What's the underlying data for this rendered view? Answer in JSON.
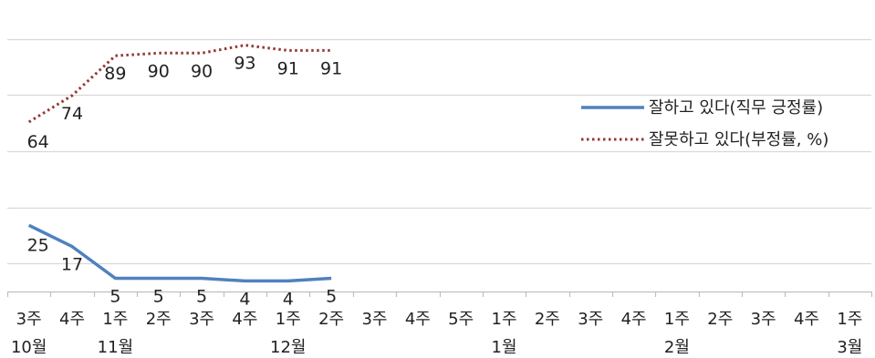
{
  "chart_data": {
    "type": "line",
    "x_weeks": [
      "3주",
      "4주",
      "1주",
      "2주",
      "3주",
      "4주",
      "1주",
      "2주",
      "3주",
      "4주",
      "5주",
      "1주",
      "2주",
      "3주",
      "4주",
      "1주",
      "2주",
      "3주",
      "4주",
      "1주"
    ],
    "x_months": [
      "10월",
      "",
      "11월",
      "",
      "",
      "",
      "12월",
      "",
      "",
      "",
      "",
      "1월",
      "",
      "",
      "",
      "2월",
      "",
      "",
      "",
      "3월"
    ],
    "ylim": [
      0,
      108
    ],
    "grid": true,
    "legend_position": "right",
    "series": [
      {
        "name": "잘하고 있다(직무 긍정률)",
        "color": "#4f81bd",
        "style": "solid",
        "values": [
          25,
          17,
          5,
          5,
          5,
          4,
          4,
          5,
          null,
          null,
          null,
          null,
          null,
          null,
          null,
          null,
          null,
          null,
          null,
          null
        ]
      },
      {
        "name": "잘못하고 있다(부정률, %)",
        "color": "#953735",
        "style": "dotted",
        "values": [
          64,
          74,
          89,
          90,
          90,
          93,
          91,
          91,
          null,
          null,
          null,
          null,
          null,
          null,
          null,
          null,
          null,
          null,
          null,
          null
        ]
      }
    ]
  }
}
